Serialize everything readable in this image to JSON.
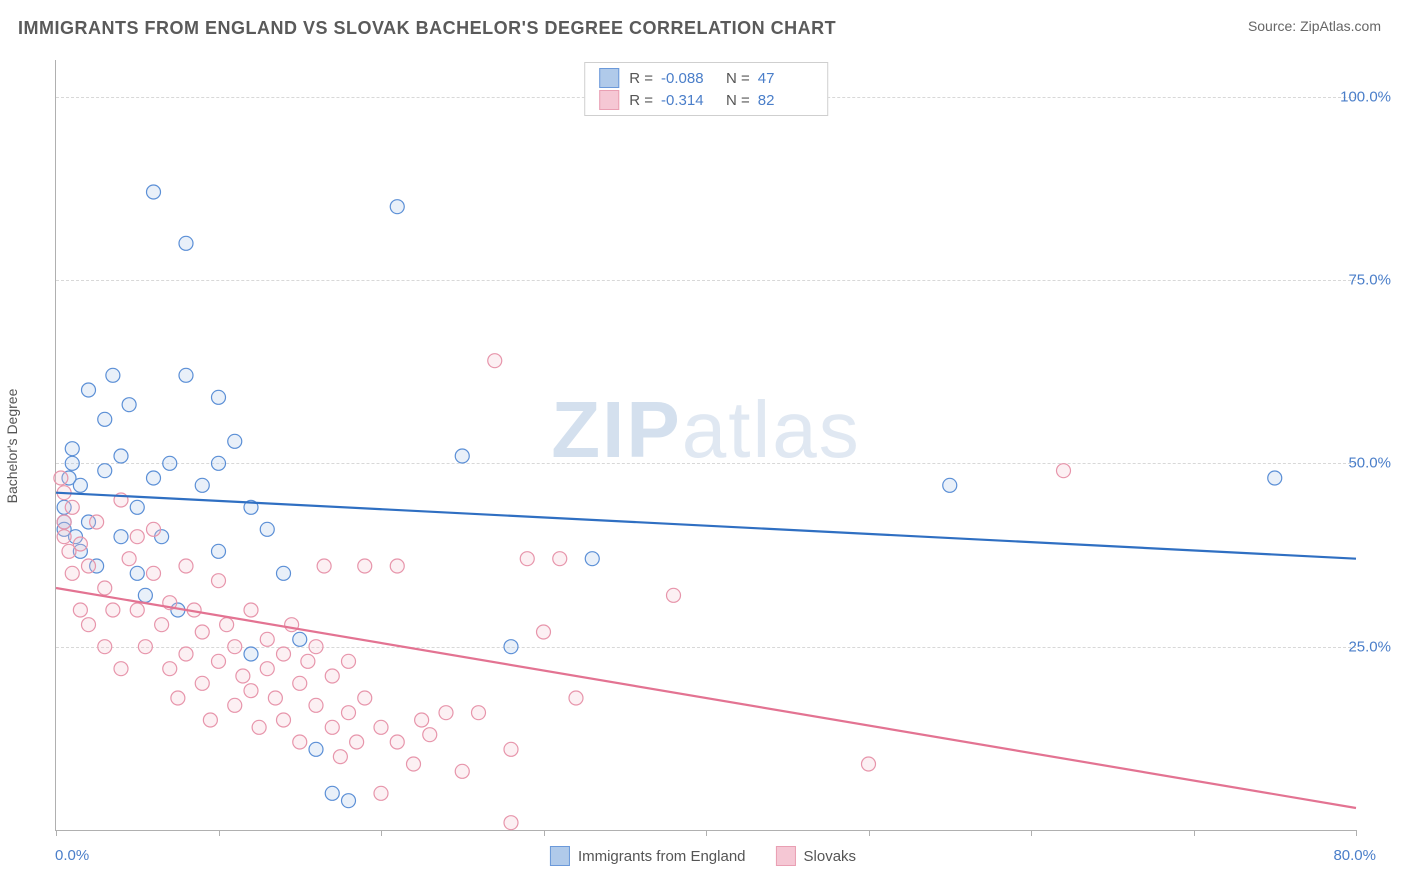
{
  "title": "IMMIGRANTS FROM ENGLAND VS SLOVAK BACHELOR'S DEGREE CORRELATION CHART",
  "source": {
    "label": "Source:",
    "value": "ZipAtlas.com"
  },
  "watermark": {
    "bold": "ZIP",
    "light": "atlas"
  },
  "ylabel": "Bachelor's Degree",
  "chart": {
    "type": "scatter",
    "xlim": [
      0,
      80
    ],
    "ylim": [
      0,
      105
    ],
    "x_tick_step": 10,
    "x_ticks": [
      0,
      10,
      20,
      30,
      40,
      50,
      60,
      70,
      80
    ],
    "y_gridlines": [
      25,
      50,
      75,
      100
    ],
    "y_gridline_labels": [
      "25.0%",
      "50.0%",
      "75.0%",
      "100.0%"
    ],
    "x_label_min": "0.0%",
    "x_label_max": "80.0%",
    "background_color": "#ffffff",
    "grid_color": "#d8d8d8",
    "axis_color": "#b0b0b0",
    "marker_radius": 7,
    "marker_fill_opacity": 0.25,
    "marker_stroke_width": 1.2,
    "line_width": 2.2
  },
  "series": [
    {
      "name": "Immigrants from England",
      "color_stroke": "#5b8fd6",
      "color_fill": "#a8c5e8",
      "line_color": "#2f6fc2",
      "R": "-0.088",
      "N": "47",
      "regression": {
        "x1": 0,
        "y1": 46,
        "x2": 80,
        "y2": 37
      },
      "points": [
        [
          0.5,
          42
        ],
        [
          0.5,
          44
        ],
        [
          0.8,
          48
        ],
        [
          1,
          50
        ],
        [
          1,
          52
        ],
        [
          1.2,
          40
        ],
        [
          1.5,
          47
        ],
        [
          1.5,
          38
        ],
        [
          2,
          60
        ],
        [
          2,
          42
        ],
        [
          2.5,
          36
        ],
        [
          3,
          56
        ],
        [
          3,
          49
        ],
        [
          3.5,
          62
        ],
        [
          4,
          51
        ],
        [
          4,
          40
        ],
        [
          4.5,
          58
        ],
        [
          5,
          35
        ],
        [
          5,
          44
        ],
        [
          5.5,
          32
        ],
        [
          6,
          48
        ],
        [
          6,
          87
        ],
        [
          6.5,
          40
        ],
        [
          7,
          50
        ],
        [
          7.5,
          30
        ],
        [
          8,
          62
        ],
        [
          8,
          80
        ],
        [
          9,
          47
        ],
        [
          10,
          59
        ],
        [
          10,
          38
        ],
        [
          10,
          50
        ],
        [
          11,
          53
        ],
        [
          12,
          44
        ],
        [
          12,
          24
        ],
        [
          13,
          41
        ],
        [
          14,
          35
        ],
        [
          15,
          26
        ],
        [
          16,
          11
        ],
        [
          17,
          5
        ],
        [
          18,
          4
        ],
        [
          21,
          85
        ],
        [
          25,
          51
        ],
        [
          28,
          25
        ],
        [
          33,
          37
        ],
        [
          55,
          47
        ],
        [
          75,
          48
        ],
        [
          0.5,
          41
        ]
      ]
    },
    {
      "name": "Slovaks",
      "color_stroke": "#e795ab",
      "color_fill": "#f4c2d0",
      "line_color": "#e37392",
      "R": "-0.314",
      "N": "82",
      "regression": {
        "x1": 0,
        "y1": 33,
        "x2": 80,
        "y2": 3
      },
      "points": [
        [
          0.3,
          48
        ],
        [
          0.5,
          40
        ],
        [
          0.5,
          42
        ],
        [
          0.8,
          38
        ],
        [
          1,
          35
        ],
        [
          1,
          44
        ],
        [
          1.5,
          30
        ],
        [
          1.5,
          39
        ],
        [
          2,
          36
        ],
        [
          2,
          28
        ],
        [
          2.5,
          42
        ],
        [
          3,
          33
        ],
        [
          3,
          25
        ],
        [
          3.5,
          30
        ],
        [
          4,
          45
        ],
        [
          4,
          22
        ],
        [
          4.5,
          37
        ],
        [
          5,
          30
        ],
        [
          5,
          40
        ],
        [
          5.5,
          25
        ],
        [
          6,
          35
        ],
        [
          6,
          41
        ],
        [
          6.5,
          28
        ],
        [
          7,
          22
        ],
        [
          7,
          31
        ],
        [
          7.5,
          18
        ],
        [
          8,
          36
        ],
        [
          8,
          24
        ],
        [
          8.5,
          30
        ],
        [
          9,
          20
        ],
        [
          9,
          27
        ],
        [
          9.5,
          15
        ],
        [
          10,
          34
        ],
        [
          10,
          23
        ],
        [
          10.5,
          28
        ],
        [
          11,
          17
        ],
        [
          11,
          25
        ],
        [
          11.5,
          21
        ],
        [
          12,
          30
        ],
        [
          12,
          19
        ],
        [
          12.5,
          14
        ],
        [
          13,
          26
        ],
        [
          13,
          22
        ],
        [
          13.5,
          18
        ],
        [
          14,
          24
        ],
        [
          14,
          15
        ],
        [
          14.5,
          28
        ],
        [
          15,
          20
        ],
        [
          15,
          12
        ],
        [
          15.5,
          23
        ],
        [
          16,
          17
        ],
        [
          16,
          25
        ],
        [
          16.5,
          36
        ],
        [
          17,
          14
        ],
        [
          17,
          21
        ],
        [
          17.5,
          10
        ],
        [
          18,
          23
        ],
        [
          18,
          16
        ],
        [
          18.5,
          12
        ],
        [
          19,
          36
        ],
        [
          19,
          18
        ],
        [
          20,
          5
        ],
        [
          20,
          14
        ],
        [
          21,
          36
        ],
        [
          21,
          12
        ],
        [
          22,
          9
        ],
        [
          22.5,
          15
        ],
        [
          23,
          13
        ],
        [
          24,
          16
        ],
        [
          25,
          8
        ],
        [
          26,
          16
        ],
        [
          27,
          64
        ],
        [
          28,
          11
        ],
        [
          28,
          1
        ],
        [
          29,
          37
        ],
        [
          30,
          27
        ],
        [
          31,
          37
        ],
        [
          32,
          18
        ],
        [
          38,
          32
        ],
        [
          50,
          9
        ],
        [
          62,
          49
        ],
        [
          0.5,
          46
        ]
      ]
    }
  ],
  "legend_bottom": [
    {
      "label": "Immigrants from England",
      "series": 0
    },
    {
      "label": "Slovaks",
      "series": 1
    }
  ]
}
